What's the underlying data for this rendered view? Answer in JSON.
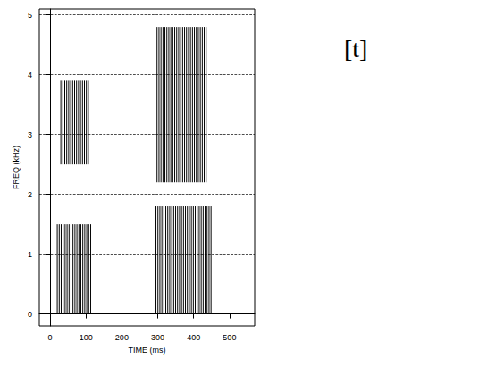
{
  "chart_data": {
    "type": "spectrogram",
    "annotation": "[t]",
    "x_label": "TIME (ms)",
    "y_label": "FREQ (kHz)",
    "xlim": [
      -30,
      570
    ],
    "xticks": [
      0,
      100,
      200,
      300,
      400,
      500
    ],
    "ylim": [
      -0.2,
      5.1
    ],
    "yticks": [
      0,
      1,
      2,
      3,
      4,
      5
    ],
    "grid": true,
    "color": "#000000",
    "regions": [
      {
        "time": [
          20,
          115
        ],
        "freq": [
          0,
          1.5
        ]
      },
      {
        "time": [
          30,
          110
        ],
        "freq": [
          2.5,
          3.9
        ]
      },
      {
        "time": [
          295,
          450
        ],
        "freq": [
          0,
          1.8
        ]
      },
      {
        "time": [
          298,
          440
        ],
        "freq": [
          2.2,
          4.8
        ]
      }
    ]
  }
}
